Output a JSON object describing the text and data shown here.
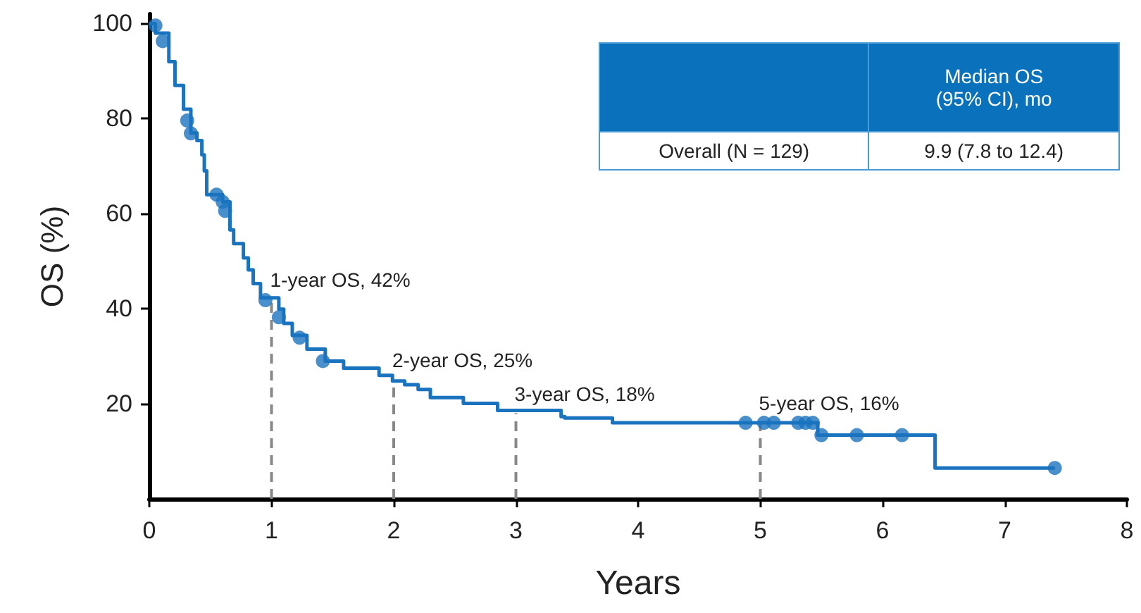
{
  "chart_data": {
    "type": "step",
    "xlabel": "Years",
    "ylabel": "OS (%)",
    "xlim": [
      0,
      8
    ],
    "xticks": [
      0,
      1,
      2,
      3,
      4,
      5,
      6,
      7,
      8
    ],
    "ylim": [
      0,
      102
    ],
    "yticks": [
      20,
      40,
      60,
      80,
      100
    ],
    "grid": false,
    "series": [
      {
        "marker": "none",
        "color": "#1a73bf",
        "x": [
          0,
          0.05,
          0.16,
          0.21,
          0.28,
          0.34,
          0.39,
          0.43,
          0.45,
          0.47,
          0.6,
          0.66,
          0.69,
          0.77,
          0.81,
          0.85,
          0.91,
          1.06,
          1.1,
          1.17,
          1.29,
          1.44,
          1.59,
          1.88,
          1.99,
          2.09,
          2.2,
          2.3,
          2.57,
          2.85,
          3.37,
          3.4,
          3.79,
          5.47,
          6.43,
          7.41
        ],
        "values": [
          100,
          98,
          92,
          87,
          82,
          77,
          75.4,
          72.4,
          69,
          64,
          62.5,
          56.6,
          53.7,
          50.7,
          48.2,
          45.3,
          42.3,
          39.9,
          36.9,
          34.4,
          31.5,
          29,
          27.5,
          26,
          24.8,
          24,
          23,
          21.3,
          20.1,
          18.6,
          17.3,
          17,
          16,
          13.4,
          6.5,
          6.5
        ]
      },
      {
        "type": "scatter",
        "marker": "circle",
        "color": "#1a73bf",
        "x": [
          0.05,
          0.11,
          0.31,
          0.34,
          0.55,
          0.6,
          0.62,
          0.95,
          1.06,
          1.23,
          1.42,
          4.88,
          5.03,
          5.11,
          5.31,
          5.37,
          5.43,
          5.5,
          5.79,
          6.16,
          7.41
        ],
        "values": [
          99.6,
          96.3,
          79.6,
          76.9,
          64,
          62.5,
          60.6,
          41.8,
          38.2,
          33.9,
          29,
          16,
          16,
          16,
          16,
          16,
          16,
          13.4,
          13.4,
          13.4,
          6.5
        ]
      }
    ],
    "annotations": [
      {
        "text": "1-year OS, 42%",
        "x": 1,
        "y": 42
      },
      {
        "text": "2-year OS, 25%",
        "x": 2,
        "y": 25
      },
      {
        "text": "3-year OS, 18%",
        "x": 3,
        "y": 18
      },
      {
        "text": "5-year OS, 16%",
        "x": 5,
        "y": 16
      },
      "Median OS\n(95% CI), mo",
      "Overall (N = 129)",
      "9.9 (7.8 to 12.4)"
    ]
  }
}
